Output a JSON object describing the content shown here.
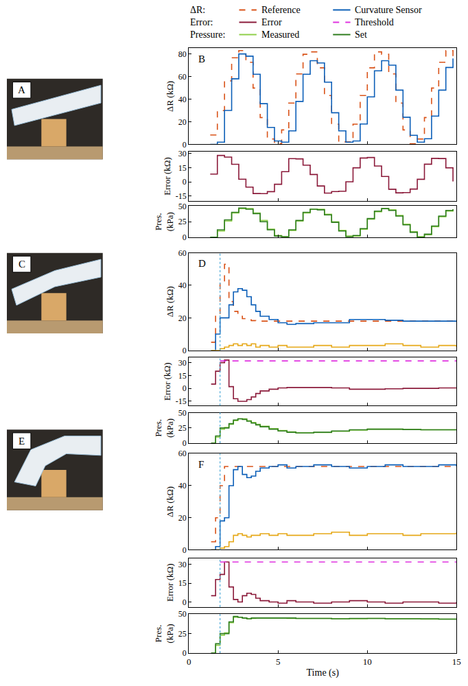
{
  "legend_groups": [
    {
      "label": "ΔR:",
      "items": [
        "Reference",
        "Curvature Sensor"
      ]
    },
    {
      "label": "Error:",
      "items": [
        "Error",
        "Threshold"
      ]
    },
    {
      "label": "Pressure:",
      "items": [
        "Measured",
        "Set"
      ]
    }
  ],
  "photos": [
    {
      "label": "A"
    },
    {
      "label": "C"
    },
    {
      "label": "E"
    }
  ],
  "chart_data": [
    {
      "type": "line",
      "panel": "B",
      "ylabel": "ΔR (kΩ)",
      "xlim": [
        0,
        15
      ],
      "xticks": [
        0,
        5,
        10,
        15
      ],
      "ylim": [
        0,
        85
      ],
      "yticks": [
        0,
        20,
        40,
        60,
        80
      ],
      "tick_labels": "y",
      "x": [
        1.2,
        1.6,
        2.0,
        2.4,
        2.8,
        3.2,
        3.6,
        4.0,
        4.4,
        4.8,
        5.2,
        5.6,
        6.0,
        6.4,
        6.8,
        7.2,
        7.6,
        8.0,
        8.4,
        8.8,
        9.2,
        9.6,
        10.0,
        10.4,
        10.8,
        11.2,
        11.6,
        12.0,
        12.4,
        12.8,
        13.2,
        13.6,
        14.0,
        14.4,
        14.8
      ],
      "series": [
        {
          "name": "Reference",
          "color": "#d95319",
          "line_style": "dashed",
          "values": [
            8.3,
            29.9,
            56.2,
            76.6,
            82.9,
            72.6,
            49.8,
            23.7,
            4.8,
            0.5,
            12.8,
            36.5,
            62.3,
            79.7,
            81.8,
            67.7,
            43.2,
            17.9,
            2.2,
            2.2,
            17.9,
            43.2,
            67.7,
            81.8,
            79.7,
            62.3,
            36.5,
            12.8,
            0.5,
            4.8,
            23.7,
            49.8,
            72.6,
            82.9,
            76.6
          ]
        },
        {
          "name": "Curvature Sensor",
          "color": "#0c5fb8",
          "line_style": "solid",
          "values": [
            0,
            2,
            30,
            58,
            80,
            78,
            62,
            36,
            15,
            3,
            2,
            12,
            38,
            62,
            74,
            72,
            55,
            28,
            12,
            2,
            3,
            18,
            42,
            65,
            74,
            70,
            48,
            24,
            8,
            2,
            5,
            25,
            48,
            68,
            76
          ]
        }
      ]
    },
    {
      "type": "line",
      "ylabel": "Error (kΩ)",
      "xlim": [
        0,
        15
      ],
      "xticks": [
        0,
        5,
        10,
        15
      ],
      "ylim": [
        -20,
        32
      ],
      "yticks": [
        -15,
        0,
        15,
        30
      ],
      "tick_labels": "y",
      "x": [
        1.2,
        1.6,
        2.0,
        2.4,
        2.8,
        3.2,
        3.6,
        4.0,
        4.4,
        4.8,
        5.2,
        5.6,
        6.0,
        6.4,
        6.8,
        7.2,
        7.6,
        8.0,
        8.4,
        8.8,
        9.2,
        9.6,
        10.0,
        10.4,
        10.8,
        11.2,
        11.6,
        12.0,
        12.4,
        12.8,
        13.2,
        13.6,
        14.0,
        14.4,
        14.8
      ],
      "series": [
        {
          "name": "Error",
          "color": "#8b1a3a",
          "line_style": "solid",
          "values": [
            8.3,
            27.9,
            26.2,
            18.6,
            2.9,
            -5.4,
            -12.2,
            -12.3,
            -10.2,
            -2.5,
            10.8,
            24.5,
            24.3,
            17.7,
            7.8,
            -4.3,
            -11.8,
            -10.1,
            -9.8,
            0.2,
            14.9,
            25.2,
            25.7,
            16.8,
            5.7,
            -7.7,
            -11.5,
            -11.2,
            -7.5,
            2.8,
            18.7,
            24.8,
            24.6,
            14.9,
            0.6
          ]
        }
      ]
    },
    {
      "type": "line",
      "ylabel": "Pres. (kPa)",
      "xlim": [
        0,
        15
      ],
      "xticks": [
        0,
        5,
        10,
        15
      ],
      "ylim": [
        0,
        50
      ],
      "yticks": [
        0,
        25,
        50
      ],
      "tick_labels": "y",
      "x": [
        1.2,
        1.6,
        2.0,
        2.4,
        2.8,
        3.2,
        3.6,
        4.0,
        4.4,
        4.8,
        5.2,
        5.6,
        6.0,
        6.4,
        6.8,
        7.2,
        7.6,
        8.0,
        8.4,
        8.8,
        9.2,
        9.6,
        10.0,
        10.4,
        10.8,
        11.2,
        11.6,
        12.0,
        12.4,
        12.8,
        13.2,
        13.6,
        14.0,
        14.4,
        14.8
      ],
      "series": [
        {
          "name": "Measured",
          "color": "#8fcf4a",
          "line_style": "solid",
          "values": [
            0,
            10,
            26,
            39,
            46,
            46,
            39,
            27,
            13,
            3,
            1,
            11,
            26,
            39,
            45,
            45,
            37,
            25,
            11,
            2,
            2,
            13,
            29,
            41,
            46,
            44,
            35,
            21,
            9,
            1,
            4,
            17,
            33,
            42,
            45
          ]
        },
        {
          "name": "Set",
          "color": "#2f7d1f",
          "line_style": "solid",
          "values": [
            0,
            12,
            28,
            40,
            47,
            45,
            38,
            25,
            12,
            2,
            1,
            12,
            27,
            40,
            45,
            44,
            36,
            24,
            10,
            1,
            3,
            14,
            30,
            42,
            46,
            43,
            34,
            20,
            8,
            0,
            5,
            18,
            34,
            43,
            45
          ]
        }
      ]
    },
    {
      "type": "line",
      "panel": "D",
      "ylabel": "ΔR (kΩ)",
      "xlim": [
        0,
        15
      ],
      "xticks": [
        0,
        5,
        10,
        15
      ],
      "ylim": [
        0,
        60
      ],
      "yticks": [
        0,
        20,
        40,
        60
      ],
      "tick_labels": "y",
      "vline": 1.75,
      "x": [
        1.25,
        1.5,
        1.75,
        2.0,
        2.25,
        2.5,
        2.75,
        3.0,
        3.25,
        3.5,
        3.75,
        4.0,
        4.5,
        5.0,
        5.5,
        6,
        7,
        8,
        9,
        10,
        11,
        12,
        13,
        14,
        15
      ],
      "series": [
        {
          "name": "Reference",
          "color": "#d95319",
          "line_style": "dashed",
          "values": [
            5,
            22,
            42,
            53,
            30,
            24,
            21,
            19.5,
            18.8,
            18.3,
            18,
            18,
            18,
            18,
            18,
            18,
            18,
            18,
            18,
            18,
            18,
            18,
            18,
            18,
            18
          ]
        },
        {
          "name": "Curvature Sensor",
          "color": "#0c5fb8",
          "line_style": "solid",
          "values": [
            0,
            10,
            20,
            20,
            28,
            36,
            38,
            37,
            33,
            28,
            24,
            21,
            19,
            17,
            16,
            16.5,
            17,
            17,
            19,
            19,
            18.5,
            18,
            18,
            18,
            17.5
          ]
        },
        {
          "color": "#e6a817",
          "line_style": "solid",
          "values": [
            0,
            0,
            1,
            2,
            3,
            4,
            3,
            4,
            3,
            4,
            2,
            3,
            2,
            3,
            2,
            2,
            3,
            2,
            3,
            3,
            4,
            3,
            2,
            3,
            2
          ]
        }
      ]
    },
    {
      "type": "line",
      "ylabel": "Error (kΩ)",
      "xlim": [
        0,
        15
      ],
      "xticks": [
        0,
        5,
        10,
        15
      ],
      "ylim": [
        -20,
        36
      ],
      "yticks": [
        -15,
        0,
        15,
        30
      ],
      "tick_labels": "y",
      "vline": 1.75,
      "x": [
        1.25,
        1.5,
        1.75,
        2.0,
        2.25,
        2.5,
        2.75,
        3.0,
        3.25,
        3.5,
        3.75,
        4.0,
        4.5,
        5.0,
        5.5,
        6,
        7,
        8,
        9,
        10,
        11,
        12,
        13,
        14,
        15
      ],
      "series": [
        {
          "name": "Error",
          "color": "#8b1a3a",
          "line_style": "solid",
          "values": [
            5,
            20,
            30,
            33,
            2,
            -12,
            -15,
            -15,
            -13,
            -10,
            -6,
            -3,
            -1,
            0.5,
            1,
            1,
            1,
            0.5,
            -1,
            -1,
            -0.5,
            0,
            0,
            0.5,
            0
          ]
        },
        {
          "name": "Threshold",
          "color": "#e033e0",
          "line_style": "dashed",
          "x": [
            1.75,
            15
          ],
          "values": [
            32,
            32
          ]
        }
      ]
    },
    {
      "type": "line",
      "ylabel": "Pres. (kPa)",
      "xlim": [
        0,
        15
      ],
      "xticks": [
        0,
        5,
        10,
        15
      ],
      "ylim": [
        0,
        50
      ],
      "yticks": [
        0,
        25,
        50
      ],
      "tick_labels": "y",
      "vline": 1.75,
      "x": [
        1.25,
        1.5,
        1.75,
        2.0,
        2.25,
        2.5,
        2.75,
        3.0,
        3.25,
        3.5,
        3.75,
        4.0,
        4.5,
        5.0,
        5.5,
        6,
        7,
        8,
        9,
        10,
        11,
        12,
        13,
        14,
        15
      ],
      "series": [
        {
          "name": "Measured",
          "color": "#8fcf4a",
          "line_style": "solid",
          "values": [
            0,
            10,
            23,
            26,
            31,
            37,
            40,
            40,
            37,
            34,
            31,
            28,
            24,
            21,
            18.5,
            17,
            17.5,
            19.5,
            21.5,
            23,
            23,
            22.5,
            22,
            22,
            21.5
          ]
        },
        {
          "name": "Set",
          "color": "#2f7d1f",
          "line_style": "solid",
          "values": [
            0,
            12,
            25,
            25,
            32,
            38,
            40,
            39,
            36,
            33,
            30,
            27,
            23,
            20,
            18,
            17,
            18,
            20,
            22,
            23,
            23,
            22.5,
            22,
            22,
            21.5
          ]
        }
      ]
    },
    {
      "type": "line",
      "panel": "F",
      "ylabel": "ΔR (kΩ)",
      "xlim": [
        0,
        15
      ],
      "xticks": [
        0,
        5,
        10,
        15
      ],
      "ylim": [
        0,
        60
      ],
      "yticks": [
        0,
        20,
        40,
        60
      ],
      "tick_labels": "y",
      "vline": 1.75,
      "x": [
        1.25,
        1.5,
        1.75,
        2.0,
        2.25,
        2.5,
        2.75,
        3.0,
        3.25,
        3.5,
        3.75,
        4.0,
        4.5,
        5.0,
        5.5,
        6,
        7,
        8,
        9,
        10,
        11,
        12,
        13,
        14,
        15
      ],
      "series": [
        {
          "name": "Reference",
          "color": "#d95319",
          "line_style": "dashed",
          "values": [
            5,
            20,
            40,
            52,
            52,
            52,
            52,
            52,
            52,
            52,
            52,
            52,
            52,
            52,
            52,
            52,
            52,
            52,
            52,
            52,
            52,
            52,
            52,
            52,
            52
          ]
        },
        {
          "name": "Curvature Sensor",
          "color": "#0c5fb8",
          "line_style": "solid",
          "values": [
            0,
            2,
            18,
            20,
            40,
            50,
            52,
            47,
            45,
            46,
            49,
            51,
            52,
            53,
            51,
            52,
            53,
            52,
            51,
            52,
            53,
            52,
            52,
            53,
            52
          ]
        },
        {
          "color": "#e6a817",
          "line_style": "solid",
          "values": [
            0,
            0,
            1,
            2,
            5,
            9,
            10,
            9,
            8,
            9,
            9,
            10,
            9,
            10,
            9,
            9,
            10,
            11,
            9,
            10,
            10,
            9,
            10,
            10,
            11
          ]
        }
      ]
    },
    {
      "type": "line",
      "ylabel": "Error (kΩ)",
      "xlim": [
        0,
        15
      ],
      "xticks": [
        0,
        5,
        10,
        15
      ],
      "ylim": [
        -4,
        35
      ],
      "yticks": [
        0,
        15,
        30
      ],
      "tick_labels": "y",
      "vline": 1.75,
      "x": [
        1.25,
        1.5,
        1.75,
        2.0,
        2.25,
        2.5,
        2.75,
        3.0,
        3.25,
        3.5,
        3.75,
        4.0,
        4.5,
        5.0,
        5.5,
        6,
        7,
        8,
        9,
        10,
        11,
        12,
        13,
        14,
        15
      ],
      "series": [
        {
          "name": "Error",
          "color": "#8b1a3a",
          "line_style": "solid",
          "values": [
            5,
            18,
            22,
            32,
            12,
            2,
            0,
            5,
            7,
            6,
            3,
            1,
            0,
            -1,
            1,
            0,
            -1,
            0,
            1,
            0,
            -1,
            0,
            0,
            -1,
            0
          ]
        },
        {
          "name": "Threshold",
          "color": "#e033e0",
          "line_style": "dashed",
          "x": [
            1.75,
            15
          ],
          "values": [
            32,
            32
          ]
        }
      ]
    },
    {
      "type": "line",
      "ylabel": "Pres. (kPa)",
      "xlabel": "Time (s)",
      "xlim": [
        0,
        15
      ],
      "xticks": [
        0,
        5,
        10,
        15
      ],
      "ylim": [
        0,
        50
      ],
      "yticks": [
        0,
        25,
        50
      ],
      "vline": 1.75,
      "x": [
        1.25,
        1.5,
        1.75,
        2.0,
        2.25,
        2.5,
        2.75,
        3.0,
        3.25,
        3.5,
        3.75,
        4.0,
        4.5,
        5.0,
        5.5,
        6,
        7,
        8,
        9,
        10,
        11,
        12,
        13,
        14,
        15
      ],
      "series": [
        {
          "name": "Measured",
          "color": "#8fcf4a",
          "line_style": "solid",
          "values": [
            0,
            10,
            23,
            26,
            39,
            46,
            46,
            45,
            44,
            44.5,
            45,
            45,
            45,
            45,
            44.5,
            44.5,
            44.5,
            44,
            44,
            44.5,
            44,
            44,
            43.5,
            43.5,
            43.5
          ]
        },
        {
          "name": "Set",
          "color": "#2f7d1f",
          "line_style": "solid",
          "values": [
            0,
            12,
            25,
            25,
            40,
            47,
            46,
            45,
            44,
            45,
            45,
            45,
            45,
            45,
            45,
            44.5,
            44.5,
            44,
            44.5,
            44.5,
            44,
            44,
            44,
            43.5,
            43.5
          ]
        }
      ]
    }
  ]
}
